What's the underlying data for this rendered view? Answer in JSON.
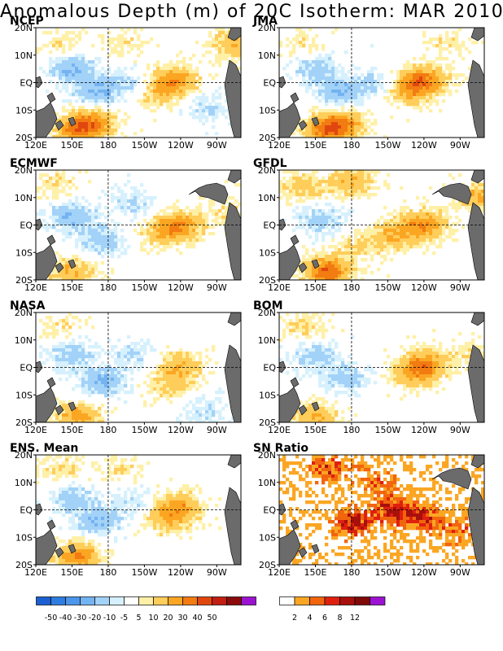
{
  "title": "Anomalous Depth (m) of 20C Isotherm: MAR 2010",
  "colors": {
    "ocean_white": "#ffffff",
    "land": "#6b6b6b",
    "anomaly_palette": [
      "#1c5fd1",
      "#2f7de0",
      "#4b96ea",
      "#74b3f2",
      "#a3d2f8",
      "#d6f1fd",
      "#ffffff",
      "#fff0a8",
      "#ffcd5a",
      "#fba623",
      "#f27b12",
      "#e0470f",
      "#c01f12",
      "#8b0a0a",
      "#9b13d1"
    ],
    "sn_palette": [
      "#ffffff",
      "#fba623",
      "#f2650f",
      "#e0200f",
      "#a8100c",
      "#800a0a",
      "#9b13d1"
    ]
  },
  "chart_data": [
    {
      "type": "heatmap",
      "title": "NCEP",
      "x_ticks": [
        "120E",
        "150E",
        "180",
        "150W",
        "120W",
        "90W"
      ],
      "y_ticks": [
        "20N",
        "10N",
        "EQ",
        "10S",
        "20S"
      ],
      "xlim": [
        120,
        290
      ],
      "ylim": [
        -20,
        20
      ],
      "grid": "dashed at 180 and EQ",
      "features": [
        {
          "lon": 235,
          "lat": 1,
          "value": 25
        },
        {
          "lon": 225,
          "lat": -4,
          "value": 15
        },
        {
          "lon": 155,
          "lat": -17,
          "value": 35
        },
        {
          "lon": 170,
          "lat": -14,
          "value": 20
        },
        {
          "lon": 150,
          "lat": 5,
          "value": -20
        },
        {
          "lon": 170,
          "lat": -3,
          "value": -20
        },
        {
          "lon": 195,
          "lat": 0,
          "value": -10
        },
        {
          "lon": 260,
          "lat": -9,
          "value": -10
        },
        {
          "lon": 140,
          "lat": 14,
          "value": 8
        },
        {
          "lon": 195,
          "lat": 14,
          "value": 8
        },
        {
          "lon": 285,
          "lat": 14,
          "value": 20
        }
      ]
    },
    {
      "type": "heatmap",
      "title": "JMA",
      "x_ticks": [
        "120E",
        "150E",
        "180",
        "150W",
        "120W",
        "90W"
      ],
      "y_ticks": [
        "20N",
        "10N",
        "EQ",
        "10S",
        "20S"
      ],
      "xlim": [
        120,
        290
      ],
      "ylim": [
        -20,
        20
      ],
      "grid": "dashed at 180 and EQ",
      "features": [
        {
          "lon": 240,
          "lat": 1,
          "value": 30
        },
        {
          "lon": 228,
          "lat": -3,
          "value": 20
        },
        {
          "lon": 160,
          "lat": -17,
          "value": 35
        },
        {
          "lon": 175,
          "lat": -15,
          "value": 20
        },
        {
          "lon": 150,
          "lat": 5,
          "value": -15
        },
        {
          "lon": 170,
          "lat": -3,
          "value": -20
        },
        {
          "lon": 200,
          "lat": -1,
          "value": -10
        },
        {
          "lon": 140,
          "lat": 14,
          "value": 8
        },
        {
          "lon": 260,
          "lat": 14,
          "value": 8
        }
      ]
    },
    {
      "type": "heatmap",
      "title": "ECMWF",
      "x_ticks": [
        "120E",
        "150E",
        "180",
        "150W",
        "120W",
        "90W"
      ],
      "y_ticks": [
        "20N",
        "10N",
        "EQ",
        "10S",
        "20S"
      ],
      "xlim": [
        120,
        290
      ],
      "ylim": [
        -20,
        20
      ],
      "grid": "dashed at 180 and EQ",
      "features": [
        {
          "lon": 240,
          "lat": 0,
          "value": 25
        },
        {
          "lon": 225,
          "lat": -3,
          "value": 15
        },
        {
          "lon": 150,
          "lat": -17,
          "value": 20
        },
        {
          "lon": 150,
          "lat": 3,
          "value": -20
        },
        {
          "lon": 175,
          "lat": -6,
          "value": -15
        },
        {
          "lon": 200,
          "lat": 8,
          "value": -10
        },
        {
          "lon": 135,
          "lat": 15,
          "value": 10
        },
        {
          "lon": 280,
          "lat": 5,
          "value": 8
        }
      ]
    },
    {
      "type": "heatmap",
      "title": "GFDL",
      "x_ticks": [
        "120E",
        "150E",
        "180",
        "150W",
        "120W",
        "90W"
      ],
      "y_ticks": [
        "20N",
        "10N",
        "EQ",
        "10S",
        "20S"
      ],
      "xlim": [
        120,
        290
      ],
      "ylim": [
        -20,
        20
      ],
      "grid": "dashed at 180 and EQ",
      "features": [
        {
          "lon": 240,
          "lat": 0,
          "value": 30
        },
        {
          "lon": 215,
          "lat": -4,
          "value": 20
        },
        {
          "lon": 160,
          "lat": -17,
          "value": 40
        },
        {
          "lon": 140,
          "lat": 14,
          "value": 15
        },
        {
          "lon": 180,
          "lat": 16,
          "value": 20
        },
        {
          "lon": 155,
          "lat": 2,
          "value": -15
        },
        {
          "lon": 185,
          "lat": -8,
          "value": 10
        },
        {
          "lon": 285,
          "lat": 10,
          "value": 20
        }
      ]
    },
    {
      "type": "heatmap",
      "title": "NASA",
      "x_ticks": [
        "120E",
        "150E",
        "180",
        "150W",
        "120W",
        "90W"
      ],
      "y_ticks": [
        "20N",
        "10N",
        "EQ",
        "10S",
        "20S"
      ],
      "xlim": [
        120,
        290
      ],
      "ylim": [
        -20,
        20
      ],
      "grid": "dashed at 180 and EQ",
      "features": [
        {
          "lon": 240,
          "lat": 0,
          "value": 20
        },
        {
          "lon": 230,
          "lat": -7,
          "value": 12
        },
        {
          "lon": 155,
          "lat": -18,
          "value": 25
        },
        {
          "lon": 150,
          "lat": 5,
          "value": -15
        },
        {
          "lon": 175,
          "lat": -5,
          "value": -20
        },
        {
          "lon": 200,
          "lat": 5,
          "value": -10
        },
        {
          "lon": 260,
          "lat": -16,
          "value": -10
        },
        {
          "lon": 140,
          "lat": 15,
          "value": 8
        }
      ]
    },
    {
      "type": "heatmap",
      "title": "BOM",
      "x_ticks": [
        "120E",
        "150E",
        "180",
        "150W",
        "120W",
        "90W"
      ],
      "y_ticks": [
        "20N",
        "10N",
        "EQ",
        "10S",
        "20S"
      ],
      "xlim": [
        120,
        290
      ],
      "ylim": [
        -20,
        20
      ],
      "grid": "dashed at 180 and EQ",
      "features": [
        {
          "lon": 240,
          "lat": 1,
          "value": 30
        },
        {
          "lon": 230,
          "lat": -3,
          "value": 15
        },
        {
          "lon": 150,
          "lat": -18,
          "value": 20
        },
        {
          "lon": 150,
          "lat": 4,
          "value": -15
        },
        {
          "lon": 175,
          "lat": -4,
          "value": -15
        },
        {
          "lon": 140,
          "lat": 15,
          "value": 10
        },
        {
          "lon": 280,
          "lat": 5,
          "value": 8
        }
      ]
    },
    {
      "type": "heatmap",
      "title": "ENS. Mean",
      "x_ticks": [
        "120E",
        "150E",
        "180",
        "150W",
        "120W",
        "90W"
      ],
      "y_ticks": [
        "20N",
        "10N",
        "EQ",
        "10S",
        "20S"
      ],
      "xlim": [
        120,
        290
      ],
      "ylim": [
        -20,
        20
      ],
      "grid": "dashed at 180 and EQ",
      "features": [
        {
          "lon": 238,
          "lat": 1,
          "value": 25
        },
        {
          "lon": 228,
          "lat": -4,
          "value": 15
        },
        {
          "lon": 155,
          "lat": -17,
          "value": 30
        },
        {
          "lon": 150,
          "lat": 4,
          "value": -15
        },
        {
          "lon": 172,
          "lat": -4,
          "value": -20
        },
        {
          "lon": 200,
          "lat": 3,
          "value": -8
        },
        {
          "lon": 140,
          "lat": 15,
          "value": 10
        },
        {
          "lon": 190,
          "lat": 15,
          "value": 8
        }
      ]
    },
    {
      "type": "heatmap",
      "title": "SN Ratio",
      "x_ticks": [
        "120E",
        "150E",
        "180",
        "150W",
        "120W",
        "90W"
      ],
      "y_ticks": [
        "20N",
        "10N",
        "EQ",
        "10S",
        "20S"
      ],
      "xlim": [
        120,
        290
      ],
      "ylim": [
        -20,
        20
      ],
      "grid": "dashed at 180 and EQ",
      "features": [
        {
          "lon": 180,
          "lat": -5,
          "value": 8
        },
        {
          "lon": 215,
          "lat": 0,
          "value": 8
        },
        {
          "lon": 160,
          "lat": 15,
          "value": 6
        },
        {
          "lon": 200,
          "lat": 10,
          "value": 4
        },
        {
          "lon": 240,
          "lat": -3,
          "value": 6
        },
        {
          "lon": 270,
          "lat": -8,
          "value": 4
        }
      ]
    }
  ],
  "colorbars": [
    {
      "type": "colorbar",
      "labels": [
        "-50",
        "-40",
        "-30",
        "-20",
        "-10",
        "-5",
        "5",
        "10",
        "20",
        "30",
        "40",
        "50"
      ]
    },
    {
      "type": "colorbar",
      "labels": [
        "2",
        "4",
        "6",
        "8",
        "12"
      ]
    }
  ]
}
